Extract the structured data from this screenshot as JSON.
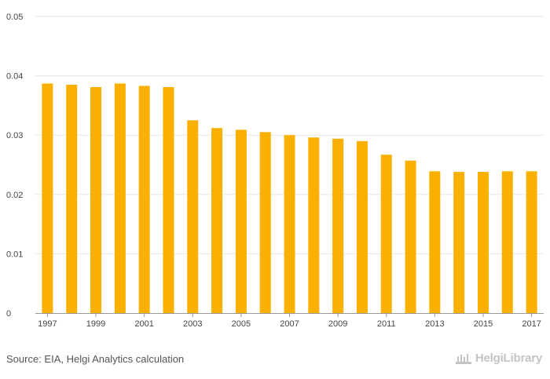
{
  "chart_data": {
    "type": "bar",
    "categories": [
      "1997",
      "1998",
      "1999",
      "2000",
      "2001",
      "2002",
      "2003",
      "2004",
      "2005",
      "2006",
      "2007",
      "2008",
      "2009",
      "2010",
      "2011",
      "2012",
      "2013",
      "2014",
      "2015",
      "2016",
      "2017"
    ],
    "values": [
      0.0387,
      0.0385,
      0.0381,
      0.0387,
      0.0383,
      0.0381,
      0.0325,
      0.0312,
      0.0309,
      0.0305,
      0.03,
      0.0296,
      0.0294,
      0.029,
      0.0267,
      0.0257,
      0.0239,
      0.0238,
      0.0238,
      0.0239,
      0.0239
    ],
    "xtick_labels": [
      "1997",
      "1999",
      "2001",
      "2003",
      "2005",
      "2007",
      "2009",
      "2011",
      "2013",
      "2015",
      "2017"
    ],
    "ytick_labels": [
      "0",
      "0.01",
      "0.02",
      "0.03",
      "0.04",
      "0.05"
    ],
    "ylim": [
      0,
      0.05
    ],
    "title": "",
    "xlabel": "",
    "ylabel": "",
    "bar_color": "#f9b000",
    "grid_color": "#e6e6e6"
  },
  "footer": {
    "source": "Source: EIA, Helgi Analytics calculation",
    "logo_text": "HelgiLibrary",
    "logo_icon": "helgi-building-icon"
  }
}
